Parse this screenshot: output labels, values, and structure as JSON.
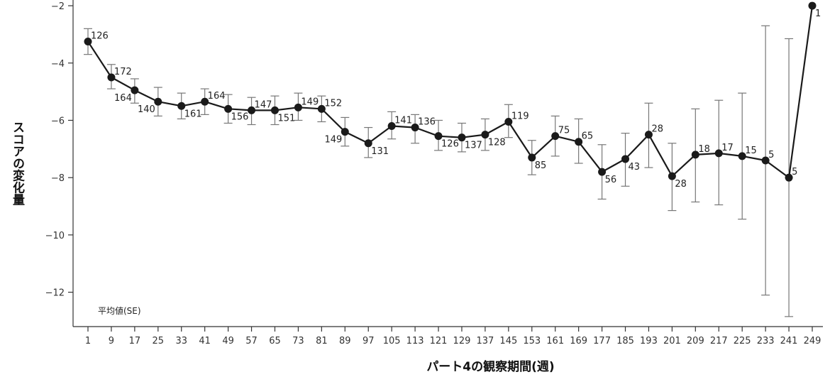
{
  "chart_data": {
    "type": "line",
    "title": "",
    "xlabel": "パート4の観察期間(週)",
    "ylabel": "スコアの変化量",
    "note": "平均値(SE)",
    "ylim": [
      -13.2,
      -1.8
    ],
    "yticks": [
      -2,
      -4,
      -6,
      -8,
      -10,
      -12
    ],
    "grid": false,
    "colors": {
      "line": "#1a1a1a",
      "error_bar": "#777777",
      "axis": "#333333"
    },
    "series": [
      {
        "points": [
          {
            "x": "1",
            "y": -3.25,
            "err_low": -3.7,
            "err_high": -2.8,
            "n": "126",
            "label_pos": "upper-right"
          },
          {
            "x": "9",
            "y": -4.5,
            "err_low": -4.9,
            "err_high": -4.05,
            "n": "172",
            "label_pos": "upper-right"
          },
          {
            "x": "17",
            "y": -4.95,
            "err_low": -5.4,
            "err_high": -4.55,
            "n": "164",
            "label_pos": "lower-left"
          },
          {
            "x": "25",
            "y": -5.35,
            "err_low": -5.85,
            "err_high": -4.85,
            "n": "140",
            "label_pos": "lower-left"
          },
          {
            "x": "33",
            "y": -5.5,
            "err_low": -5.95,
            "err_high": -5.05,
            "n": "161",
            "label_pos": "lower-right"
          },
          {
            "x": "41",
            "y": -5.35,
            "err_low": -5.8,
            "err_high": -4.9,
            "n": "164",
            "label_pos": "upper-right"
          },
          {
            "x": "49",
            "y": -5.6,
            "err_low": -6.1,
            "err_high": -5.1,
            "n": "156",
            "label_pos": "lower-right"
          },
          {
            "x": "57",
            "y": -5.65,
            "err_low": -6.15,
            "err_high": -5.2,
            "n": "147",
            "label_pos": "upper-right"
          },
          {
            "x": "65",
            "y": -5.65,
            "err_low": -6.15,
            "err_high": -5.15,
            "n": "151",
            "label_pos": "lower-right"
          },
          {
            "x": "73",
            "y": -5.55,
            "err_low": -6.0,
            "err_high": -5.05,
            "n": "149",
            "label_pos": "upper-right"
          },
          {
            "x": "81",
            "y": -5.6,
            "err_low": -6.05,
            "err_high": -5.15,
            "n": "152",
            "label_pos": "upper-right"
          },
          {
            "x": "89",
            "y": -6.4,
            "err_low": -6.9,
            "err_high": -5.9,
            "n": "149",
            "label_pos": "lower-left"
          },
          {
            "x": "97",
            "y": -6.8,
            "err_low": -7.3,
            "err_high": -6.25,
            "n": "131",
            "label_pos": "lower-right"
          },
          {
            "x": "105",
            "y": -6.2,
            "err_low": -6.65,
            "err_high": -5.7,
            "n": "141",
            "label_pos": "upper-right"
          },
          {
            "x": "113",
            "y": -6.25,
            "err_low": -6.8,
            "err_high": -5.8,
            "n": "136",
            "label_pos": "upper-right"
          },
          {
            "x": "121",
            "y": -6.55,
            "err_low": -7.05,
            "err_high": -6.0,
            "n": "126",
            "label_pos": "lower-right"
          },
          {
            "x": "129",
            "y": -6.6,
            "err_low": -7.1,
            "err_high": -6.1,
            "n": "137",
            "label_pos": "lower-right"
          },
          {
            "x": "137",
            "y": -6.5,
            "err_low": -7.05,
            "err_high": -5.95,
            "n": "128",
            "label_pos": "lower-right"
          },
          {
            "x": "145",
            "y": -6.05,
            "err_low": -6.6,
            "err_high": -5.45,
            "n": "119",
            "label_pos": "upper-right"
          },
          {
            "x": "153",
            "y": -7.3,
            "err_low": -7.9,
            "err_high": -6.7,
            "n": "85",
            "label_pos": "lower-right"
          },
          {
            "x": "161",
            "y": -6.55,
            "err_low": -7.25,
            "err_high": -5.85,
            "n": "75",
            "label_pos": "upper-right"
          },
          {
            "x": "169",
            "y": -6.75,
            "err_low": -7.5,
            "err_high": -5.95,
            "n": "65",
            "label_pos": "upper-right"
          },
          {
            "x": "177",
            "y": -7.8,
            "err_low": -8.75,
            "err_high": -6.85,
            "n": "56",
            "label_pos": "lower-right"
          },
          {
            "x": "185",
            "y": -7.35,
            "err_low": -8.3,
            "err_high": -6.45,
            "n": "43",
            "label_pos": "lower-right"
          },
          {
            "x": "193",
            "y": -6.5,
            "err_low": -7.65,
            "err_high": -5.4,
            "n": "28",
            "label_pos": "upper-right"
          },
          {
            "x": "201",
            "y": -7.95,
            "err_low": -9.15,
            "err_high": -6.8,
            "n": "28",
            "label_pos": "lower-right"
          },
          {
            "x": "209",
            "y": -7.2,
            "err_low": -8.85,
            "err_high": -5.6,
            "n": "18",
            "label_pos": "upper-right"
          },
          {
            "x": "217",
            "y": -7.15,
            "err_low": -8.95,
            "err_high": -5.3,
            "n": "17",
            "label_pos": "upper-right"
          },
          {
            "x": "225",
            "y": -7.25,
            "err_low": -9.45,
            "err_high": -5.05,
            "n": "15",
            "label_pos": "upper-right"
          },
          {
            "x": "233",
            "y": -7.4,
            "err_low": -12.1,
            "err_high": -2.7,
            "n": "5",
            "label_pos": "upper-right"
          },
          {
            "x": "241",
            "y": -8.0,
            "err_low": -12.85,
            "err_high": -3.15,
            "n": "5",
            "label_pos": "upper-right"
          },
          {
            "x": "249",
            "y": -2.0,
            "n": "1",
            "label_pos": "lower-right"
          }
        ]
      }
    ]
  }
}
